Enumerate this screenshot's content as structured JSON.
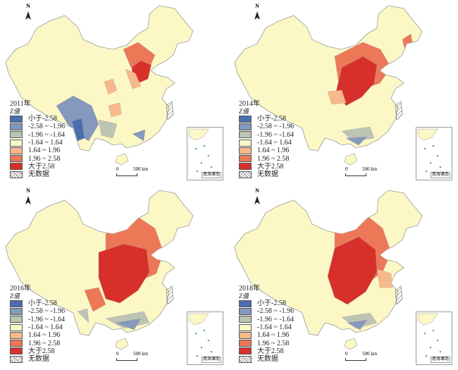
{
  "panels": [
    {
      "year": "2011年",
      "scale": {
        "zero": "0",
        "km": "500 km"
      },
      "inset": "南海诸岛"
    },
    {
      "year": "2014年",
      "scale": {
        "zero": "0",
        "km": "500 km"
      },
      "inset": "南海诸岛"
    },
    {
      "year": "2016年",
      "scale": {
        "zero": "0",
        "km": "500 km"
      },
      "inset": "南海诸岛"
    },
    {
      "year": "2018年",
      "scale": {
        "zero": "0",
        "km": "500 km"
      },
      "inset": "南海诸岛"
    }
  ],
  "north": "N",
  "legend": {
    "title": "Z值",
    "items": [
      {
        "label": "小于-2.58",
        "color": "#4a6fae"
      },
      {
        "label": "-2.58 ~ -1.96",
        "color": "#8499bd"
      },
      {
        "label": "-1.96 ~ -1.64",
        "color": "#bcc5b4"
      },
      {
        "label": "-1.64 ~ 1.64",
        "color": "#fbf8c6"
      },
      {
        "label": "1.64 ~ 1.96",
        "color": "#f8b98a"
      },
      {
        "label": "1.96 ~ 2.58",
        "color": "#ec7857"
      },
      {
        "label": "大于2.58",
        "color": "#d7302a"
      },
      {
        "label": "无数据",
        "color": "hatch"
      }
    ]
  }
}
